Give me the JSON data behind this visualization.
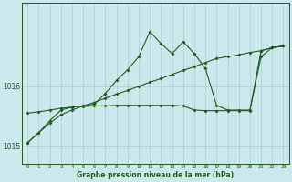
{
  "x": [
    0,
    1,
    2,
    3,
    4,
    5,
    6,
    7,
    8,
    9,
    10,
    11,
    12,
    13,
    14,
    15,
    16,
    17,
    18,
    19,
    20,
    21,
    22,
    23
  ],
  "trend_line": [
    1015.05,
    1015.22,
    1015.38,
    1015.52,
    1015.6,
    1015.67,
    1015.73,
    1015.8,
    1015.87,
    1015.93,
    1016.0,
    1016.07,
    1016.13,
    1016.2,
    1016.27,
    1016.33,
    1016.4,
    1016.47,
    1016.5,
    1016.53,
    1016.57,
    1016.6,
    1016.65,
    1016.68
  ],
  "flat_line": [
    1015.55,
    1015.57,
    1015.6,
    1015.63,
    1015.65,
    1015.66,
    1015.67,
    1015.67,
    1015.68,
    1015.68,
    1015.68,
    1015.68,
    1015.68,
    1015.68,
    1015.67,
    1015.6,
    1015.59,
    1015.59,
    1015.59,
    1015.59,
    1015.59,
    1016.6,
    1016.65,
    1016.68
  ],
  "spike_line": [
    1015.05,
    1015.22,
    1015.42,
    1015.6,
    1015.65,
    1015.67,
    1015.7,
    1015.88,
    1016.1,
    1016.28,
    1016.5,
    1016.92,
    1016.72,
    1016.55,
    1016.75,
    1016.55,
    1016.3,
    1015.68,
    1015.6,
    1015.6,
    1015.6,
    1016.5,
    1016.65,
    1016.68
  ],
  "ylim_min": 1014.7,
  "ylim_max": 1017.4,
  "yticks": [
    1015,
    1016
  ],
  "bg_color": "#cce8ed",
  "line_color": "#1e5c1e",
  "grid_color": "#aacfcf",
  "xlabel": "Graphe pression niveau de la mer (hPa)"
}
